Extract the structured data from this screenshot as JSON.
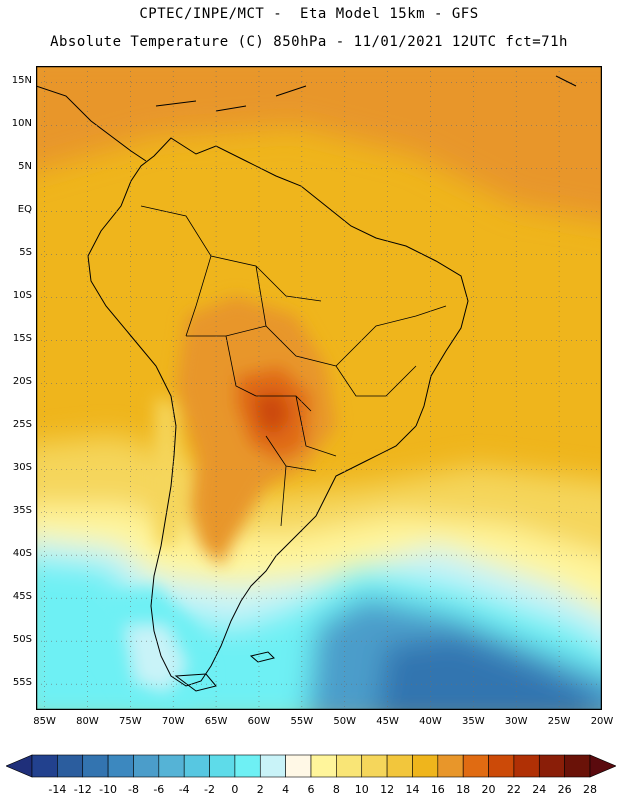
{
  "header": {
    "line1": "CPTEC/INPE/MCT -  Eta Model 15km - GFS",
    "line2": "Absolute Temperature (C) 850hPa - 11/01/2021 12UTC fct=71h"
  },
  "axes": {
    "lat_labels": [
      "15N",
      "10N",
      "5N",
      "EQ",
      "5S",
      "10S",
      "15S",
      "20S",
      "25S",
      "30S",
      "35S",
      "40S",
      "45S",
      "50S",
      "55S"
    ],
    "lon_labels": [
      "85W",
      "80W",
      "75W",
      "70W",
      "65W",
      "60W",
      "55W",
      "50W",
      "45W",
      "40W",
      "35W",
      "30W",
      "25W",
      "20W"
    ]
  },
  "colorbar": {
    "labels": [
      "-14",
      "-12",
      "-10",
      "-8",
      "-6",
      "-4",
      "-2",
      "0",
      "2",
      "4",
      "6",
      "8",
      "10",
      "12",
      "14",
      "16",
      "18",
      "20",
      "22",
      "24",
      "26",
      "28"
    ],
    "colors": [
      "#22418e",
      "#2b5d9e",
      "#3374b0",
      "#3c88bf",
      "#4b9dca",
      "#55b3d6",
      "#57c7e1",
      "#5edbe9",
      "#6ef0f4",
      "#c9f3f8",
      "#fff8e6",
      "#fff59b",
      "#f9e576",
      "#f5d65b",
      "#f2c63c",
      "#efb51c",
      "#e8962a",
      "#e06b12",
      "#cc4a08",
      "#b03005",
      "#8a1e08",
      "#6a1208"
    ]
  },
  "map": {
    "region": "South America",
    "lat_range": [
      -58,
      17
    ],
    "lon_range": [
      -86,
      -20
    ]
  }
}
